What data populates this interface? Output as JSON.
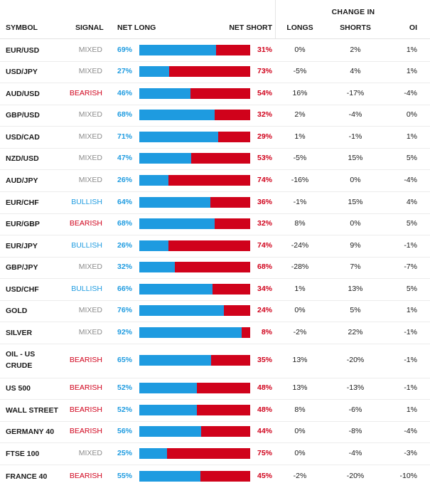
{
  "colors": {
    "long": "#1e9be0",
    "short": "#d0021b",
    "mixed": "#8c8c8c",
    "bearish": "#d0021b",
    "bullish": "#1e9be0"
  },
  "headers": {
    "change_in": "CHANGE IN",
    "symbol": "SYMBOL",
    "signal": "SIGNAL",
    "net_long": "NET LONG",
    "net_short": "NET SHORT",
    "longs": "LONGS",
    "shorts": "SHORTS",
    "oi": "OI"
  },
  "rows": [
    {
      "symbol": "EUR/USD",
      "signal": "MIXED",
      "signal_type": "mixed",
      "net_long": "69%",
      "long_fraction": 0.69,
      "net_short": "31%",
      "longs": "0%",
      "shorts": "2%",
      "oi": "1%"
    },
    {
      "symbol": "USD/JPY",
      "signal": "MIXED",
      "signal_type": "mixed",
      "net_long": "27%",
      "long_fraction": 0.27,
      "net_short": "73%",
      "longs": "-5%",
      "shorts": "4%",
      "oi": "1%"
    },
    {
      "symbol": "AUD/USD",
      "signal": "BEARISH",
      "signal_type": "bearish",
      "net_long": "46%",
      "long_fraction": 0.46,
      "net_short": "54%",
      "longs": "16%",
      "shorts": "-17%",
      "oi": "-4%"
    },
    {
      "symbol": "GBP/USD",
      "signal": "MIXED",
      "signal_type": "mixed",
      "net_long": "68%",
      "long_fraction": 0.68,
      "net_short": "32%",
      "longs": "2%",
      "shorts": "-4%",
      "oi": "0%"
    },
    {
      "symbol": "USD/CAD",
      "signal": "MIXED",
      "signal_type": "mixed",
      "net_long": "71%",
      "long_fraction": 0.71,
      "net_short": "29%",
      "longs": "1%",
      "shorts": "-1%",
      "oi": "1%"
    },
    {
      "symbol": "NZD/USD",
      "signal": "MIXED",
      "signal_type": "mixed",
      "net_long": "47%",
      "long_fraction": 0.47,
      "net_short": "53%",
      "longs": "-5%",
      "shorts": "15%",
      "oi": "5%"
    },
    {
      "symbol": "AUD/JPY",
      "signal": "MIXED",
      "signal_type": "mixed",
      "net_long": "26%",
      "long_fraction": 0.26,
      "net_short": "74%",
      "longs": "-16%",
      "shorts": "0%",
      "oi": "-4%"
    },
    {
      "symbol": "EUR/CHF",
      "signal": "BULLISH",
      "signal_type": "bullish",
      "net_long": "64%",
      "long_fraction": 0.64,
      "net_short": "36%",
      "longs": "-1%",
      "shorts": "15%",
      "oi": "4%"
    },
    {
      "symbol": "EUR/GBP",
      "signal": "BEARISH",
      "signal_type": "bearish",
      "net_long": "68%",
      "long_fraction": 0.68,
      "net_short": "32%",
      "longs": "8%",
      "shorts": "0%",
      "oi": "5%"
    },
    {
      "symbol": "EUR/JPY",
      "signal": "BULLISH",
      "signal_type": "bullish",
      "net_long": "26%",
      "long_fraction": 0.26,
      "net_short": "74%",
      "longs": "-24%",
      "shorts": "9%",
      "oi": "-1%"
    },
    {
      "symbol": "GBP/JPY",
      "signal": "MIXED",
      "signal_type": "mixed",
      "net_long": "32%",
      "long_fraction": 0.32,
      "net_short": "68%",
      "longs": "-28%",
      "shorts": "7%",
      "oi": "-7%"
    },
    {
      "symbol": "USD/CHF",
      "signal": "BULLISH",
      "signal_type": "bullish",
      "net_long": "66%",
      "long_fraction": 0.66,
      "net_short": "34%",
      "longs": "1%",
      "shorts": "13%",
      "oi": "5%"
    },
    {
      "symbol": "GOLD",
      "signal": "MIXED",
      "signal_type": "mixed",
      "net_long": "76%",
      "long_fraction": 0.76,
      "net_short": "24%",
      "longs": "0%",
      "shorts": "5%",
      "oi": "1%"
    },
    {
      "symbol": "SILVER",
      "signal": "MIXED",
      "signal_type": "mixed",
      "net_long": "92%",
      "long_fraction": 0.92,
      "net_short": "8%",
      "longs": "-2%",
      "shorts": "22%",
      "oi": "-1%"
    },
    {
      "symbol": "OIL - US CRUDE",
      "signal": "BEARISH",
      "signal_type": "bearish",
      "net_long": "65%",
      "long_fraction": 0.65,
      "net_short": "35%",
      "longs": "13%",
      "shorts": "-20%",
      "oi": "-1%"
    },
    {
      "symbol": "US 500",
      "signal": "BEARISH",
      "signal_type": "bearish",
      "net_long": "52%",
      "long_fraction": 0.52,
      "net_short": "48%",
      "longs": "13%",
      "shorts": "-13%",
      "oi": "-1%"
    },
    {
      "symbol": "WALL STREET",
      "signal": "BEARISH",
      "signal_type": "bearish",
      "net_long": "52%",
      "long_fraction": 0.52,
      "net_short": "48%",
      "longs": "8%",
      "shorts": "-6%",
      "oi": "1%"
    },
    {
      "symbol": "GERMANY 40",
      "signal": "BEARISH",
      "signal_type": "bearish",
      "net_long": "56%",
      "long_fraction": 0.56,
      "net_short": "44%",
      "longs": "0%",
      "shorts": "-8%",
      "oi": "-4%"
    },
    {
      "symbol": "FTSE 100",
      "signal": "MIXED",
      "signal_type": "mixed",
      "net_long": "25%",
      "long_fraction": 0.25,
      "net_short": "75%",
      "longs": "0%",
      "shorts": "-4%",
      "oi": "-3%"
    },
    {
      "symbol": "FRANCE 40",
      "signal": "BEARISH",
      "signal_type": "bearish",
      "net_long": "55%",
      "long_fraction": 0.55,
      "net_short": "45%",
      "longs": "-2%",
      "shorts": "-20%",
      "oi": "-10%"
    }
  ]
}
